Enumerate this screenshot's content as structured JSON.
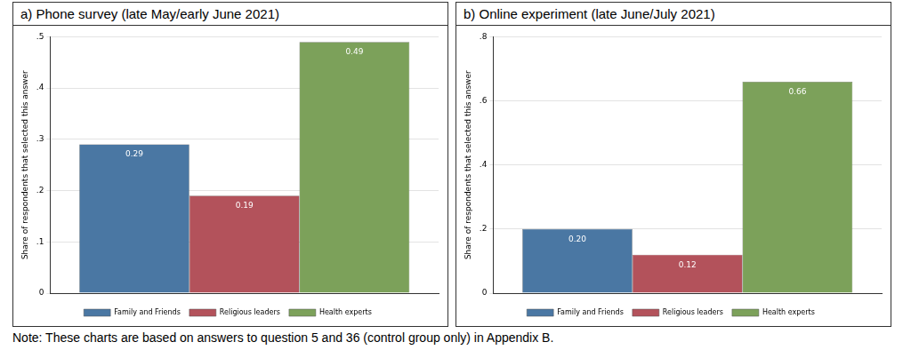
{
  "chart_data": [
    {
      "type": "bar",
      "title": "a) Phone survey (late May/early June 2021)",
      "y_label": "Share of respondents that selected this answer",
      "categories": [
        null
      ],
      "series": [
        {
          "name": "Family and Friends",
          "color": "#4a77a3",
          "values": [
            0.29
          ],
          "value_labels": [
            "0.29"
          ]
        },
        {
          "name": "Religious leaders",
          "color": "#b3525b",
          "values": [
            0.19
          ],
          "value_labels": [
            "0.19"
          ]
        },
        {
          "name": "Health experts",
          "color": "#7ca15a",
          "values": [
            0.49
          ],
          "value_labels": [
            "0.49"
          ]
        }
      ],
      "ylim": [
        0,
        0.5
      ],
      "yticks": [
        0,
        {
          "value": 0.1,
          "label": ".1"
        },
        {
          "value": 0.2,
          "label": ".2"
        },
        {
          "value": 0.3,
          "label": ".3"
        },
        {
          "value": 0.4,
          "label": ".4"
        },
        {
          "value": 0.5,
          "label": ".5"
        }
      ],
      "grid": true,
      "legend": "bottom",
      "data_labels": true,
      "tick_labels": "y"
    },
    {
      "type": "bar",
      "title": "b) Online experiment (late June/July 2021)",
      "y_label": "Share of respondents that selected this answer",
      "categories": [
        null
      ],
      "series": [
        {
          "name": "Family and Friends",
          "color": "#4a77a3",
          "values": [
            0.2
          ],
          "value_labels": [
            "0.20"
          ]
        },
        {
          "name": "Religious leaders",
          "color": "#b3525b",
          "values": [
            0.12
          ],
          "value_labels": [
            "0.12"
          ]
        },
        {
          "name": "Health experts",
          "color": "#7ca15a",
          "values": [
            0.66
          ],
          "value_labels": [
            "0.66"
          ]
        }
      ],
      "ylim": [
        0,
        0.8
      ],
      "yticks": [
        0,
        {
          "value": 0.2,
          "label": ".2"
        },
        {
          "value": 0.4,
          "label": ".4"
        },
        {
          "value": 0.6,
          "label": ".6"
        },
        {
          "value": 0.8,
          "label": ".8"
        }
      ],
      "grid": true,
      "legend": "bottom",
      "data_labels": true,
      "tick_labels": "y"
    }
  ],
  "note": "Note: These charts are based on answers to question 5 and 36 (control group only) in Appendix B."
}
